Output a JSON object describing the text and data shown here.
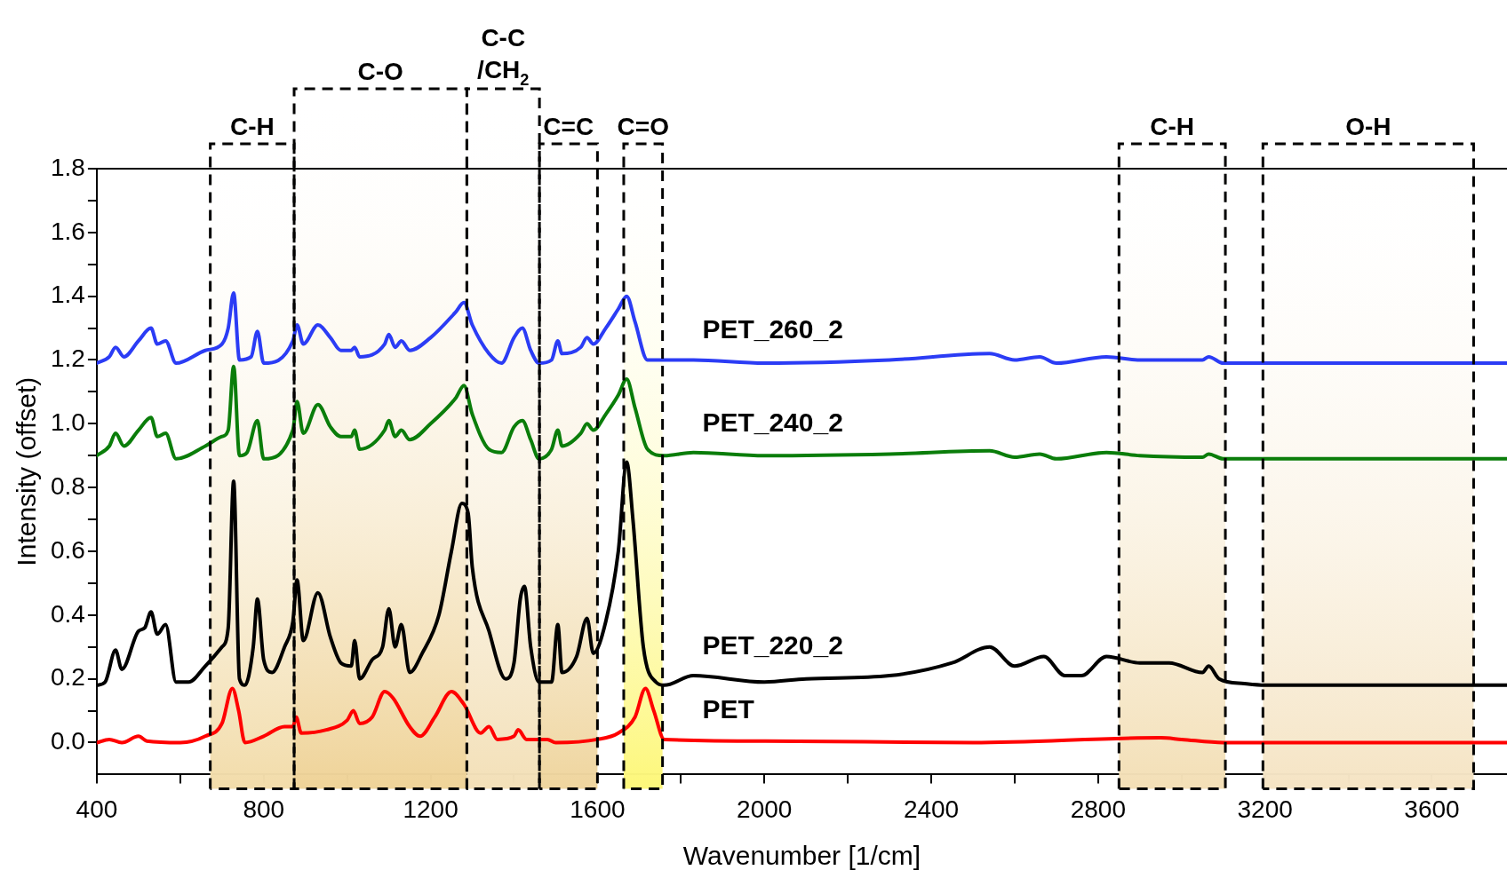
{
  "chart_data": {
    "type": "line",
    "xlabel": "Wavenumber [1/cm]",
    "ylabel": "Intensity (offset)",
    "xlim": [
      400,
      3780
    ],
    "xticks": [
      400,
      {
        "value": 600,
        "label": null
      },
      800,
      {
        "value": 1000,
        "label": null
      },
      1200,
      {
        "value": 1400,
        "label": null
      },
      1600,
      {
        "value": 1800,
        "label": null
      },
      2000,
      {
        "value": 2200,
        "label": null
      },
      2400,
      {
        "value": 2600,
        "label": null
      },
      2800,
      {
        "value": 3000,
        "label": null
      },
      3200,
      {
        "value": 3400,
        "label": null
      },
      3600
    ],
    "ylim": [
      -0.1,
      1.8
    ],
    "yticks": [
      {
        "value": 0,
        "label": "0.0"
      },
      {
        "value": 0.1,
        "label": null
      },
      {
        "value": 0.2,
        "label": "0.2"
      },
      {
        "value": 0.3,
        "label": null
      },
      {
        "value": 0.4,
        "label": "0.4"
      },
      {
        "value": 0.5,
        "label": null
      },
      {
        "value": 0.6,
        "label": "0.6"
      },
      {
        "value": 0.7,
        "label": null
      },
      {
        "value": 0.8,
        "label": "0.8"
      },
      {
        "value": 0.9,
        "label": null
      },
      {
        "value": 1.0,
        "label": "1.0"
      },
      {
        "value": 1.1,
        "label": null
      },
      {
        "value": 1.2,
        "label": "1.2"
      },
      {
        "value": 1.3,
        "label": null
      },
      {
        "value": 1.4,
        "label": "1.4"
      },
      {
        "value": 1.5,
        "label": null
      },
      {
        "value": 1.6,
        "label": "1.6"
      },
      {
        "value": 1.7,
        "label": null
      },
      {
        "value": 1.8,
        "label": "1.8"
      }
    ],
    "grid": false,
    "legend": false,
    "marker": "none",
    "line_style": "solid",
    "bands": [
      {
        "axis": "x",
        "from": 672,
        "to": 873,
        "label": "C-H",
        "color": "#f2dcaa"
      },
      {
        "axis": "x",
        "from": 873,
        "to": 1287,
        "label": "C-O",
        "color": "#efd398"
      },
      {
        "axis": "x",
        "from": 1287,
        "to": 1461,
        "label": "C-C /CH$_{2}$",
        "color": "#f3e0b8"
      },
      {
        "axis": "x",
        "from": 1461,
        "to": 1600,
        "label": "C=C",
        "color": "#efd59e"
      },
      {
        "axis": "x",
        "from": 1663,
        "to": 1756,
        "label": "C=O",
        "color": "#fdf77a"
      },
      {
        "axis": "x",
        "from": 2850,
        "to": 3105,
        "label": "C-H",
        "color": "#f3dfb6"
      },
      {
        "axis": "x",
        "from": 3195,
        "to": 3700,
        "label": "O-H",
        "color": "#f5e4c4"
      }
    ],
    "series": [
      {
        "name": "PET",
        "color": "#ff0000",
        "x": [
          400,
          430,
          460,
          500,
          520,
          600,
          660,
          700,
          725,
          740,
          755,
          800,
          850,
          870,
          878,
          890,
          950,
          1000,
          1015,
          1030,
          1060,
          1090,
          1110,
          1150,
          1175,
          1210,
          1250,
          1280,
          1320,
          1340,
          1360,
          1400,
          1410,
          1430,
          1480,
          1500,
          1600,
          1650,
          1690,
          1715,
          1735,
          1760,
          2000,
          2500,
          2950,
          3000,
          3100,
          3780
        ],
        "values": [
          0,
          0.01,
          0,
          0.02,
          0.005,
          0,
          0.02,
          0.06,
          0.17,
          0.1,
          0,
          0.02,
          0.05,
          0.05,
          0.08,
          0.03,
          0.04,
          0.07,
          0.1,
          0.06,
          0.08,
          0.16,
          0.14,
          0.05,
          0.02,
          0.08,
          0.16,
          0.12,
          0.03,
          0.05,
          0.01,
          0.02,
          0.04,
          0.01,
          0.01,
          0,
          0.01,
          0.03,
          0.08,
          0.17,
          0.1,
          0.01,
          0.005,
          0,
          0.015,
          0.01,
          0,
          0
        ]
      },
      {
        "name": "PET_220_2",
        "color": "#000000",
        "x": [
          400,
          420,
          445,
          460,
          500,
          515,
          530,
          545,
          565,
          590,
          620,
          660,
          700,
          715,
          728,
          742,
          755,
          775,
          785,
          800,
          820,
          850,
          870,
          880,
          895,
          930,
          960,
          985,
          1010,
          1018,
          1030,
          1060,
          1085,
          1100,
          1115,
          1130,
          1150,
          1180,
          1220,
          1250,
          1275,
          1290,
          1300,
          1340,
          1380,
          1400,
          1415,
          1425,
          1440,
          1460,
          1490,
          1505,
          1515,
          1550,
          1575,
          1590,
          1620,
          1650,
          1670,
          1685,
          1710,
          1740,
          1760,
          1830,
          2000,
          2100,
          2300,
          2450,
          2540,
          2600,
          2670,
          2720,
          2760,
          2820,
          2900,
          2970,
          3050,
          3065,
          3090,
          3150,
          3200,
          3780
        ],
        "values": [
          0.18,
          0.19,
          0.29,
          0.23,
          0.35,
          0.36,
          0.41,
          0.34,
          0.37,
          0.19,
          0.19,
          0.24,
          0.3,
          0.36,
          0.82,
          0.2,
          0.18,
          0.3,
          0.45,
          0.26,
          0.22,
          0.3,
          0.38,
          0.51,
          0.32,
          0.47,
          0.33,
          0.25,
          0.24,
          0.32,
          0.2,
          0.26,
          0.3,
          0.42,
          0.3,
          0.37,
          0.22,
          0.28,
          0.4,
          0.6,
          0.75,
          0.72,
          0.55,
          0.35,
          0.2,
          0.25,
          0.45,
          0.49,
          0.3,
          0.19,
          0.19,
          0.37,
          0.22,
          0.27,
          0.39,
          0.28,
          0.38,
          0.6,
          0.88,
          0.7,
          0.3,
          0.19,
          0.18,
          0.21,
          0.19,
          0.2,
          0.21,
          0.25,
          0.3,
          0.24,
          0.27,
          0.21,
          0.21,
          0.27,
          0.25,
          0.25,
          0.22,
          0.24,
          0.2,
          0.185,
          0.18,
          0.18
        ]
      },
      {
        "name": "PET_240_2",
        "color": "#0a7d0a",
        "x": [
          400,
          430,
          445,
          465,
          500,
          530,
          545,
          565,
          590,
          660,
          700,
          715,
          728,
          742,
          760,
          785,
          800,
          870,
          880,
          895,
          930,
          960,
          985,
          1010,
          1018,
          1030,
          1090,
          1100,
          1115,
          1130,
          1150,
          1200,
          1260,
          1280,
          1300,
          1340,
          1370,
          1400,
          1420,
          1440,
          1460,
          1490,
          1505,
          1515,
          1560,
          1575,
          1590,
          1620,
          1650,
          1670,
          1690,
          1720,
          1760,
          1830,
          2000,
          2300,
          2540,
          2600,
          2660,
          2700,
          2820,
          2900,
          3050,
          3065,
          3100,
          3780
        ],
        "values": [
          0.9,
          0.93,
          0.97,
          0.93,
          0.98,
          1.02,
          0.96,
          0.97,
          0.89,
          0.93,
          0.96,
          0.98,
          1.18,
          0.9,
          0.91,
          1.01,
          0.89,
          0.98,
          1.07,
          0.97,
          1.06,
          0.99,
          0.96,
          0.96,
          0.98,
          0.92,
          0.98,
          1.01,
          0.96,
          0.98,
          0.95,
          1.0,
          1.08,
          1.12,
          1.03,
          0.92,
          0.91,
          0.99,
          1.01,
          0.95,
          0.89,
          0.92,
          0.98,
          0.93,
          0.97,
          1.0,
          0.98,
          1.03,
          1.09,
          1.14,
          1.05,
          0.92,
          0.9,
          0.91,
          0.9,
          0.905,
          0.915,
          0.895,
          0.905,
          0.89,
          0.91,
          0.9,
          0.895,
          0.905,
          0.89,
          0.89
        ]
      },
      {
        "name": "PET_260_2",
        "color": "#2b3cf5",
        "x": [
          400,
          430,
          445,
          465,
          500,
          530,
          545,
          565,
          590,
          660,
          700,
          715,
          728,
          742,
          770,
          785,
          800,
          870,
          880,
          895,
          930,
          960,
          985,
          1010,
          1018,
          1030,
          1090,
          1100,
          1115,
          1130,
          1150,
          1200,
          1260,
          1280,
          1300,
          1340,
          1370,
          1400,
          1420,
          1440,
          1460,
          1490,
          1505,
          1515,
          1560,
          1575,
          1590,
          1620,
          1650,
          1670,
          1690,
          1720,
          1760,
          1830,
          2000,
          2300,
          2540,
          2600,
          2660,
          2700,
          2820,
          2900,
          3050,
          3065,
          3100,
          3780
        ],
        "values": [
          1.19,
          1.21,
          1.24,
          1.21,
          1.26,
          1.3,
          1.25,
          1.26,
          1.19,
          1.23,
          1.25,
          1.3,
          1.41,
          1.2,
          1.21,
          1.29,
          1.19,
          1.26,
          1.31,
          1.25,
          1.31,
          1.27,
          1.23,
          1.23,
          1.24,
          1.21,
          1.25,
          1.28,
          1.24,
          1.26,
          1.23,
          1.27,
          1.35,
          1.38,
          1.31,
          1.22,
          1.19,
          1.27,
          1.3,
          1.23,
          1.19,
          1.2,
          1.26,
          1.22,
          1.24,
          1.27,
          1.25,
          1.3,
          1.36,
          1.4,
          1.32,
          1.2,
          1.2,
          1.2,
          1.19,
          1.2,
          1.22,
          1.2,
          1.21,
          1.19,
          1.21,
          1.2,
          1.2,
          1.21,
          1.19,
          1.19
        ]
      }
    ]
  }
}
